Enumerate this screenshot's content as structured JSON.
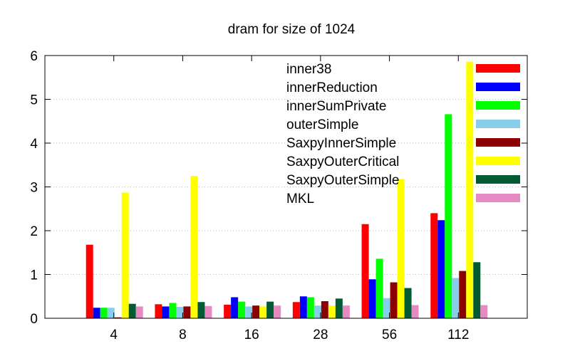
{
  "chart_data": {
    "type": "bar",
    "title": "dram for size of 1024",
    "xlabel": "",
    "ylabel": "",
    "ylim": [
      0,
      6
    ],
    "yticks": [
      "0",
      "1",
      "2",
      "3",
      "4",
      "5",
      "6"
    ],
    "grid": "horizontal dotted",
    "legend_position": "top-right",
    "categories": [
      "4",
      "8",
      "16",
      "28",
      "56",
      "112"
    ],
    "series": [
      {
        "name": "inner38",
        "color": "#ff0000",
        "values": [
          1.68,
          0.32,
          0.31,
          0.37,
          2.15,
          2.4
        ]
      },
      {
        "name": "innerReduction",
        "color": "#0000ff",
        "values": [
          0.24,
          0.27,
          0.48,
          0.5,
          0.89,
          2.24
        ]
      },
      {
        "name": "innerSumPrivate",
        "color": "#00ff00",
        "values": [
          0.24,
          0.35,
          0.38,
          0.48,
          1.36,
          4.66
        ]
      },
      {
        "name": "outerSimple",
        "color": "#87ceeb",
        "values": [
          0.24,
          0.26,
          0.27,
          0.29,
          0.46,
          0.92
        ]
      },
      {
        "name": "SaxpyInnerSimple",
        "color": "#8b0000",
        "values": [
          0.02,
          0.27,
          0.29,
          0.39,
          0.82,
          1.08
        ]
      },
      {
        "name": "SaxpyOuterCritical",
        "color": "#ffff00",
        "values": [
          2.87,
          3.25,
          0.27,
          0.29,
          3.18,
          5.86
        ]
      },
      {
        "name": "SaxpyOuterSimple",
        "color": "#005a32",
        "values": [
          0.33,
          0.37,
          0.38,
          0.45,
          0.69,
          1.28
        ]
      },
      {
        "name": "MKL",
        "color": "#e78ac3",
        "values": [
          0.27,
          0.28,
          0.29,
          0.29,
          0.3,
          0.3
        ]
      }
    ]
  }
}
